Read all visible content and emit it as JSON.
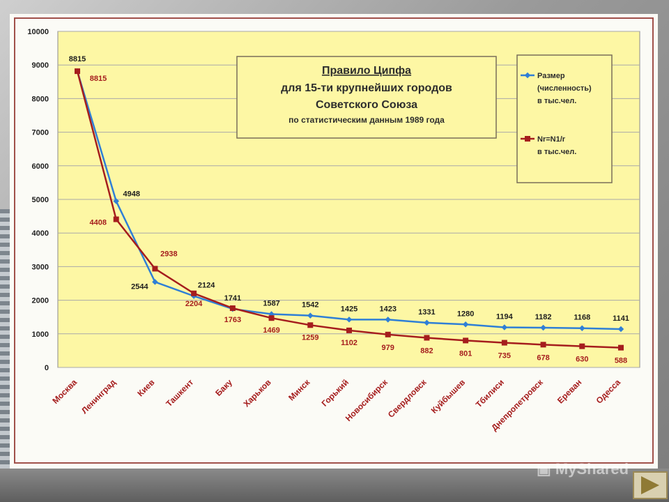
{
  "slide": {
    "watermark": "MyShared",
    "watermark_icon": "presentation-board-icon",
    "next_icon": "triangle-right-icon"
  },
  "colors": {
    "plot_bg": "#fdf7a4",
    "series_size": "#2f7fd6",
    "series_zipf": "#a51d1d",
    "frame": "#a0504a"
  },
  "chart_data": {
    "type": "line",
    "title_lines": [
      "Правило Ципфа",
      "для 15-ти крупнейших городов",
      "Советского Союза",
      "по статистическим данным 1989 года"
    ],
    "categories": [
      "Москва",
      "Ленинград",
      "Киев",
      "Ташкент",
      "Баку",
      "Харьков",
      "Минск",
      "Горький",
      "Новосибирск",
      "Свердловск",
      "Куйбышев",
      "Тбилиси",
      "Днепропетровск",
      "Ереван",
      "Одесса"
    ],
    "ylim": [
      0,
      10000
    ],
    "yticks": [
      "0",
      "1000",
      "2000",
      "3000",
      "4000",
      "5000",
      "6000",
      "7000",
      "8000",
      "9000",
      "10000"
    ],
    "grid": true,
    "legend_position": "top-right",
    "series": [
      {
        "name_lines": [
          "Размер",
          "(численность)",
          "в тыс.чел."
        ],
        "marker": "diamond",
        "values": [
          8815,
          4948,
          2544,
          2124,
          1741,
          1587,
          1542,
          1425,
          1423,
          1331,
          1280,
          1194,
          1182,
          1168,
          1141
        ],
        "labels": [
          "8815",
          "4948",
          "2544",
          "2124",
          "1741",
          "1587",
          "1542",
          "1425",
          "1423",
          "1331",
          "1280",
          "1194",
          "1182",
          "1168",
          "1141"
        ]
      },
      {
        "name_lines": [
          "Nr=N1/r",
          "в тыс.чел."
        ],
        "marker": "square",
        "values": [
          8815,
          4408,
          2938,
          2204,
          1763,
          1469,
          1259,
          1102,
          979,
          882,
          801,
          735,
          678,
          630,
          588
        ],
        "labels": [
          "8815",
          "4408",
          "2938",
          "2204",
          "1763",
          "1469",
          "1259",
          "1102",
          "979",
          "882",
          "801",
          "735",
          "678",
          "630",
          "588"
        ]
      }
    ]
  }
}
